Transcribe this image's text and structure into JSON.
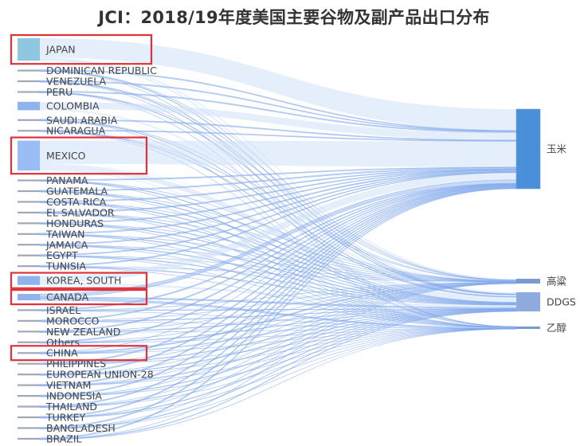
{
  "title": "JCI：2018/19年度美国主要谷物及副产品出口分布",
  "chart_data": {
    "type": "sankey",
    "colors": {
      "link": "#9bbcf0",
      "node_source": "#8fb3ec",
      "node_target": "#4a90d9",
      "node_minor": "#a0a8b8",
      "highlight": "#e0303a"
    },
    "sources": [
      {
        "name": "JAPAN",
        "value": 12,
        "highlight": true,
        "color": "#8fc6e0"
      },
      {
        "name": "DOMINICAN REPUBLIC",
        "value": 0.6
      },
      {
        "name": "VENEZUELA",
        "value": 0.5
      },
      {
        "name": "PERU",
        "value": 0.9
      },
      {
        "name": "COLOMBIA",
        "value": 4.5
      },
      {
        "name": "SAUDI ARABIA",
        "value": 0.6
      },
      {
        "name": "NICARAGUA",
        "value": 0.5
      },
      {
        "name": "MEXICO",
        "value": 16,
        "highlight": true,
        "color": "#9bbdf5"
      },
      {
        "name": "PANAMA",
        "value": 0.5
      },
      {
        "name": "GUATEMALA",
        "value": 0.9
      },
      {
        "name": "COSTA RICA",
        "value": 0.6
      },
      {
        "name": "EL SALVADOR",
        "value": 0.5
      },
      {
        "name": "HONDURAS",
        "value": 0.5
      },
      {
        "name": "TAIWAN",
        "value": 0.9
      },
      {
        "name": "JAMAICA",
        "value": 0.4
      },
      {
        "name": "EGYPT",
        "value": 0.4
      },
      {
        "name": "TUNISIA",
        "value": 0.3
      },
      {
        "name": "KOREA, SOUTH",
        "value": 4.8,
        "highlight": true
      },
      {
        "name": "CANADA",
        "value": 3.4,
        "highlight": true
      },
      {
        "name": "ISRAEL",
        "value": 0.4
      },
      {
        "name": "MOROCCO",
        "value": 0.4
      },
      {
        "name": "NEW ZEALAND",
        "value": 0.3
      },
      {
        "name": "Others",
        "value": 0.3
      },
      {
        "name": "CHINA",
        "value": 0.6,
        "highlight": true
      },
      {
        "name": "PHILIPPINES",
        "value": 0.4
      },
      {
        "name": "EUROPEAN UNION-28",
        "value": 0.5
      },
      {
        "name": "VIETNAM",
        "value": 0.5
      },
      {
        "name": "INDONESIA",
        "value": 0.5
      },
      {
        "name": "THAILAND",
        "value": 0.4
      },
      {
        "name": "TURKEY",
        "value": 0.3
      },
      {
        "name": "BANGLADESH",
        "value": 0.3
      },
      {
        "name": "BRAZIL",
        "value": 0.3
      }
    ],
    "targets": [
      {
        "name": "玉米",
        "value": 45
      },
      {
        "name": "高粱",
        "value": 1.5
      },
      {
        "name": "DDGS",
        "value": 5.2
      },
      {
        "name": "乙醇",
        "value": 0.6
      }
    ]
  }
}
